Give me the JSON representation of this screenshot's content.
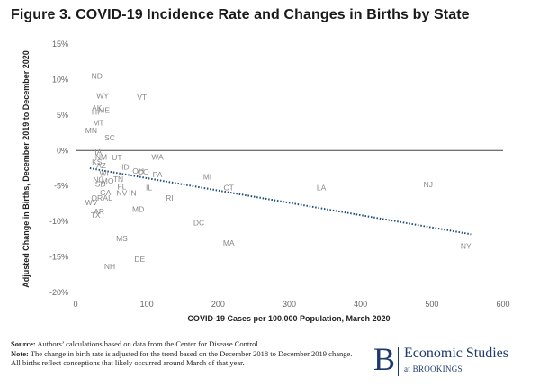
{
  "chart_data": {
    "type": "scatter",
    "title": "Figure 3. COVID-19 Incidence Rate and Changes in Births by State",
    "xlabel": "COVID-19 Cases per 100,000 Population, March 2020",
    "ylabel": "Adjusted Change in Births, December 2019 to December 2020",
    "xlim": [
      0,
      600
    ],
    "ylim": [
      -20,
      15
    ],
    "x_ticks": [
      "0",
      "100",
      "200",
      "300",
      "400",
      "500",
      "600"
    ],
    "x_tick_values": [
      0,
      100,
      200,
      300,
      400,
      500,
      600
    ],
    "y_ticks": [
      "15%",
      "10%",
      "5%",
      "0%",
      "-5%",
      "-10%",
      "-15%",
      "-20%"
    ],
    "y_tick_values": [
      15,
      10,
      5,
      0,
      -5,
      -10,
      -15,
      -20
    ],
    "trendline": {
      "x": [
        20,
        555
      ],
      "y": [
        -2.5,
        -11.8
      ],
      "style": "dotted",
      "color": "#1f4e79"
    },
    "points": [
      {
        "label": "ND",
        "x": 30,
        "y": 10.5
      },
      {
        "label": "WY",
        "x": 38,
        "y": 7.7
      },
      {
        "label": "VT",
        "x": 93,
        "y": 7.5
      },
      {
        "label": "AK",
        "x": 30,
        "y": 6.0
      },
      {
        "label": "ME",
        "x": 40,
        "y": 5.7
      },
      {
        "label": "HI",
        "x": 28,
        "y": 5.4
      },
      {
        "label": "MT",
        "x": 32,
        "y": 3.9
      },
      {
        "label": "MN",
        "x": 22,
        "y": 2.8
      },
      {
        "label": "SC",
        "x": 48,
        "y": 1.8
      },
      {
        "label": "IA",
        "x": 32,
        "y": -0.2
      },
      {
        "label": "NM",
        "x": 36,
        "y": -0.9
      },
      {
        "label": "UT",
        "x": 58,
        "y": -1.0
      },
      {
        "label": "WA",
        "x": 115,
        "y": -0.9
      },
      {
        "label": "KS",
        "x": 30,
        "y": -1.6
      },
      {
        "label": "AZ",
        "x": 36,
        "y": -2.1
      },
      {
        "label": "ID",
        "x": 70,
        "y": -2.3
      },
      {
        "label": "OH",
        "x": 88,
        "y": -2.9
      },
      {
        "label": "CO",
        "x": 95,
        "y": -3.0
      },
      {
        "label": "WI",
        "x": 40,
        "y": -3.2
      },
      {
        "label": "PA",
        "x": 115,
        "y": -3.4
      },
      {
        "label": "MI",
        "x": 185,
        "y": -3.7
      },
      {
        "label": "NC",
        "x": 32,
        "y": -4.1
      },
      {
        "label": "MO",
        "x": 45,
        "y": -4.3
      },
      {
        "label": "TN",
        "x": 60,
        "y": -4.0
      },
      {
        "label": "SD",
        "x": 35,
        "y": -4.7
      },
      {
        "label": "FL",
        "x": 65,
        "y": -5.1
      },
      {
        "label": "IL",
        "x": 103,
        "y": -5.2
      },
      {
        "label": "CT",
        "x": 215,
        "y": -5.2
      },
      {
        "label": "LA",
        "x": 345,
        "y": -5.2
      },
      {
        "label": "NJ",
        "x": 495,
        "y": -4.8
      },
      {
        "label": "GA",
        "x": 42,
        "y": -5.9
      },
      {
        "label": "NV",
        "x": 65,
        "y": -6.0
      },
      {
        "label": "IN",
        "x": 80,
        "y": -6.0
      },
      {
        "label": "OR",
        "x": 30,
        "y": -6.7
      },
      {
        "label": "AL",
        "x": 45,
        "y": -6.7
      },
      {
        "label": "RI",
        "x": 132,
        "y": -6.7
      },
      {
        "label": "WV",
        "x": 22,
        "y": -7.3
      },
      {
        "label": "MD",
        "x": 88,
        "y": -8.3
      },
      {
        "label": "AR",
        "x": 33,
        "y": -8.6
      },
      {
        "label": "TX",
        "x": 28,
        "y": -9.1
      },
      {
        "label": "DC",
        "x": 173,
        "y": -10.2
      },
      {
        "label": "MS",
        "x": 65,
        "y": -12.4
      },
      {
        "label": "MA",
        "x": 215,
        "y": -13.0
      },
      {
        "label": "NY",
        "x": 548,
        "y": -13.5
      },
      {
        "label": "DE",
        "x": 90,
        "y": -15.3
      },
      {
        "label": "NH",
        "x": 48,
        "y": -16.3
      }
    ]
  },
  "notes": {
    "source_label": "Source:",
    "source_text": " Authors’ calculations based on data from the Center for Disease Control.",
    "note_label": "Note:",
    "note_text": " The change in birth rate is adjusted for the trend based on the December 2018 to December 2019 change. All births reflect conceptions that likely occurred around March of that year."
  },
  "brand": {
    "letter": "B",
    "line1": "Economic Studies",
    "line2": "at BROOKINGS",
    "color": "#1d3a6b"
  }
}
